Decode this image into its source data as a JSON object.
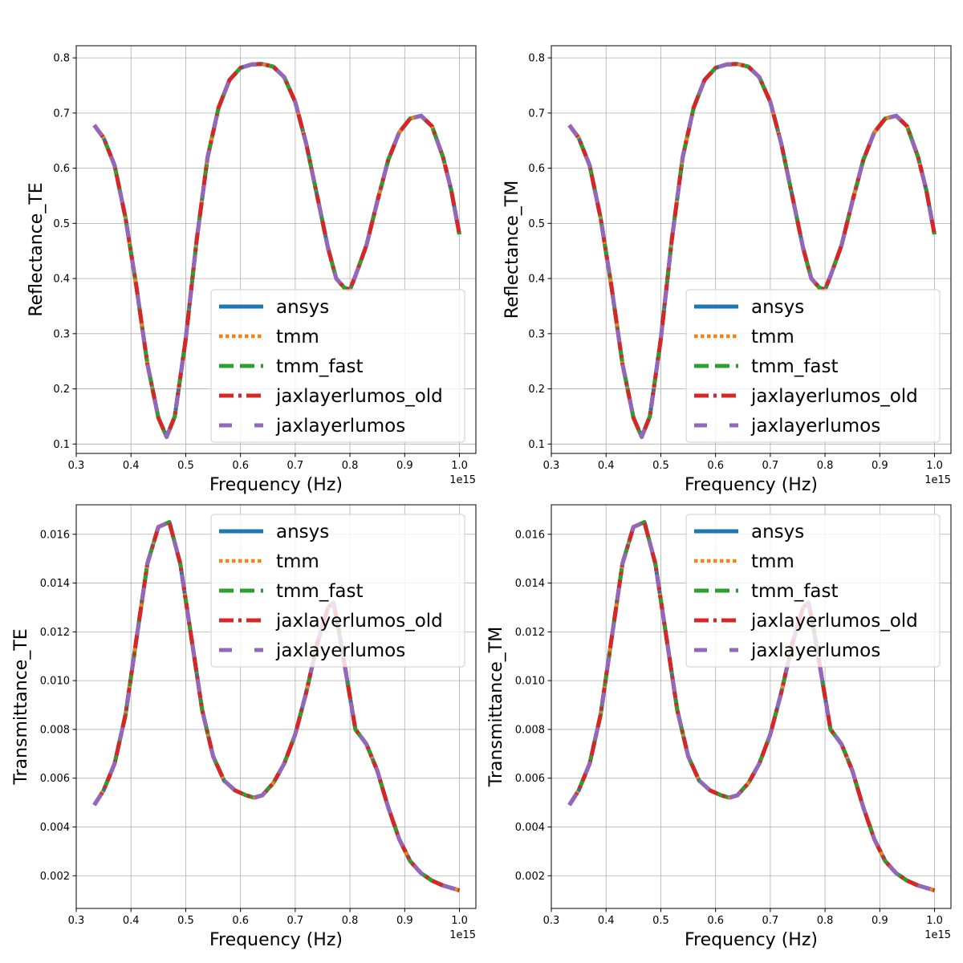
{
  "chart_data": [
    {
      "type": "line",
      "xlabel": "Frequency (Hz)",
      "ylabel": "Reflectance_TE",
      "x_offset_label": "1e15",
      "xlim": [
        0.3,
        1.03
      ],
      "ylim": [
        0.083,
        0.822
      ],
      "xticks": [
        "0.3",
        "0.4",
        "0.5",
        "0.6",
        "0.7",
        "0.8",
        "0.9",
        "1.0"
      ],
      "yticks": [
        "0.1",
        "0.2",
        "0.3",
        "0.4",
        "0.5",
        "0.6",
        "0.7",
        "0.8"
      ],
      "grid": true,
      "legend": "lower right",
      "x": [
        0.333,
        0.35,
        0.37,
        0.39,
        0.41,
        0.43,
        0.45,
        0.465,
        0.48,
        0.5,
        0.52,
        0.54,
        0.56,
        0.58,
        0.6,
        0.62,
        0.64,
        0.66,
        0.68,
        0.7,
        0.72,
        0.74,
        0.76,
        0.775,
        0.79,
        0.8,
        0.81,
        0.83,
        0.85,
        0.87,
        0.89,
        0.91,
        0.93,
        0.95,
        0.97,
        0.985,
        1.0
      ],
      "y": [
        0.678,
        0.655,
        0.605,
        0.51,
        0.385,
        0.245,
        0.148,
        0.113,
        0.15,
        0.29,
        0.47,
        0.62,
        0.71,
        0.76,
        0.782,
        0.788,
        0.789,
        0.784,
        0.765,
        0.72,
        0.645,
        0.55,
        0.455,
        0.4,
        0.383,
        0.38,
        0.405,
        0.46,
        0.54,
        0.615,
        0.665,
        0.69,
        0.695,
        0.676,
        0.62,
        0.56,
        0.48
      ],
      "series": [
        {
          "name": "ansys",
          "color": "#1f77b4",
          "style": "solid"
        },
        {
          "name": "tmm",
          "color": "#ff7f0e",
          "style": "dotted"
        },
        {
          "name": "tmm_fast",
          "color": "#2ca02c",
          "style": "dashed"
        },
        {
          "name": "jaxlayerlumos_old",
          "color": "#d62728",
          "style": "dashdot"
        },
        {
          "name": "jaxlayerlumos",
          "color": "#9467bd",
          "style": "loosedash"
        }
      ]
    },
    {
      "type": "line",
      "xlabel": "Frequency (Hz)",
      "ylabel": "Reflectance_TM",
      "x_offset_label": "1e15",
      "xlim": [
        0.3,
        1.03
      ],
      "ylim": [
        0.083,
        0.822
      ],
      "xticks": [
        "0.3",
        "0.4",
        "0.5",
        "0.6",
        "0.7",
        "0.8",
        "0.9",
        "1.0"
      ],
      "yticks": [
        "0.1",
        "0.2",
        "0.3",
        "0.4",
        "0.5",
        "0.6",
        "0.7",
        "0.8"
      ],
      "grid": true,
      "legend": "lower right",
      "x": [
        0.333,
        0.35,
        0.37,
        0.39,
        0.41,
        0.43,
        0.45,
        0.465,
        0.48,
        0.5,
        0.52,
        0.54,
        0.56,
        0.58,
        0.6,
        0.62,
        0.64,
        0.66,
        0.68,
        0.7,
        0.72,
        0.74,
        0.76,
        0.775,
        0.79,
        0.8,
        0.81,
        0.83,
        0.85,
        0.87,
        0.89,
        0.91,
        0.93,
        0.95,
        0.97,
        0.985,
        1.0
      ],
      "y": [
        0.678,
        0.655,
        0.605,
        0.51,
        0.385,
        0.245,
        0.148,
        0.113,
        0.15,
        0.29,
        0.47,
        0.62,
        0.71,
        0.76,
        0.782,
        0.788,
        0.789,
        0.784,
        0.765,
        0.72,
        0.645,
        0.55,
        0.455,
        0.4,
        0.383,
        0.38,
        0.405,
        0.46,
        0.54,
        0.615,
        0.665,
        0.69,
        0.695,
        0.676,
        0.62,
        0.56,
        0.48
      ],
      "series": [
        {
          "name": "ansys",
          "color": "#1f77b4",
          "style": "solid"
        },
        {
          "name": "tmm",
          "color": "#ff7f0e",
          "style": "dotted"
        },
        {
          "name": "tmm_fast",
          "color": "#2ca02c",
          "style": "dashed"
        },
        {
          "name": "jaxlayerlumos_old",
          "color": "#d62728",
          "style": "dashdot"
        },
        {
          "name": "jaxlayerlumos",
          "color": "#9467bd",
          "style": "loosedash"
        }
      ]
    },
    {
      "type": "line",
      "xlabel": "Frequency (Hz)",
      "ylabel": "Transmittance_TE",
      "x_offset_label": "1e15",
      "xlim": [
        0.3,
        1.03
      ],
      "ylim": [
        0.00066,
        0.01721
      ],
      "xticks": [
        "0.3",
        "0.4",
        "0.5",
        "0.6",
        "0.7",
        "0.8",
        "0.9",
        "1.0"
      ],
      "yticks": [
        "0.002",
        "0.004",
        "0.006",
        "0.008",
        "0.010",
        "0.012",
        "0.014",
        "0.016"
      ],
      "grid": true,
      "legend": "upper right",
      "x": [
        0.333,
        0.35,
        0.37,
        0.39,
        0.41,
        0.43,
        0.45,
        0.47,
        0.49,
        0.51,
        0.53,
        0.55,
        0.57,
        0.59,
        0.61,
        0.625,
        0.64,
        0.66,
        0.68,
        0.7,
        0.72,
        0.74,
        0.76,
        0.77,
        0.78,
        0.795,
        0.81,
        0.83,
        0.85,
        0.87,
        0.89,
        0.91,
        0.93,
        0.95,
        0.97,
        1.0
      ],
      "y": [
        0.0049,
        0.0055,
        0.0066,
        0.0086,
        0.0117,
        0.0148,
        0.0163,
        0.0165,
        0.0148,
        0.0118,
        0.0088,
        0.0069,
        0.0059,
        0.0055,
        0.0053,
        0.0052,
        0.0053,
        0.0058,
        0.0066,
        0.0078,
        0.0095,
        0.0115,
        0.013,
        0.0132,
        0.012,
        0.01,
        0.008,
        0.0074,
        0.0063,
        0.0048,
        0.0035,
        0.0026,
        0.0021,
        0.0018,
        0.0016,
        0.0014
      ],
      "series": [
        {
          "name": "ansys",
          "color": "#1f77b4",
          "style": "solid"
        },
        {
          "name": "tmm",
          "color": "#ff7f0e",
          "style": "dotted"
        },
        {
          "name": "tmm_fast",
          "color": "#2ca02c",
          "style": "dashed"
        },
        {
          "name": "jaxlayerlumos_old",
          "color": "#d62728",
          "style": "dashdot"
        },
        {
          "name": "jaxlayerlumos",
          "color": "#9467bd",
          "style": "loosedash"
        }
      ]
    },
    {
      "type": "line",
      "xlabel": "Frequency (Hz)",
      "ylabel": "Transmittance_TM",
      "x_offset_label": "1e15",
      "xlim": [
        0.3,
        1.03
      ],
      "ylim": [
        0.00066,
        0.01721
      ],
      "xticks": [
        "0.3",
        "0.4",
        "0.5",
        "0.6",
        "0.7",
        "0.8",
        "0.9",
        "1.0"
      ],
      "yticks": [
        "0.002",
        "0.004",
        "0.006",
        "0.008",
        "0.010",
        "0.012",
        "0.014",
        "0.016"
      ],
      "grid": true,
      "legend": "upper right",
      "x": [
        0.333,
        0.35,
        0.37,
        0.39,
        0.41,
        0.43,
        0.45,
        0.47,
        0.49,
        0.51,
        0.53,
        0.55,
        0.57,
        0.59,
        0.61,
        0.625,
        0.64,
        0.66,
        0.68,
        0.7,
        0.72,
        0.74,
        0.76,
        0.77,
        0.78,
        0.795,
        0.81,
        0.83,
        0.85,
        0.87,
        0.89,
        0.91,
        0.93,
        0.95,
        0.97,
        1.0
      ],
      "y": [
        0.0049,
        0.0055,
        0.0066,
        0.0086,
        0.0117,
        0.0148,
        0.0163,
        0.0165,
        0.0148,
        0.0118,
        0.0088,
        0.0069,
        0.0059,
        0.0055,
        0.0053,
        0.0052,
        0.0053,
        0.0058,
        0.0066,
        0.0078,
        0.0095,
        0.0115,
        0.013,
        0.0132,
        0.012,
        0.01,
        0.008,
        0.0074,
        0.0063,
        0.0048,
        0.0035,
        0.0026,
        0.0021,
        0.0018,
        0.0016,
        0.0014
      ],
      "series": [
        {
          "name": "ansys",
          "color": "#1f77b4",
          "style": "solid"
        },
        {
          "name": "tmm",
          "color": "#ff7f0e",
          "style": "dotted"
        },
        {
          "name": "tmm_fast",
          "color": "#2ca02c",
          "style": "dashed"
        },
        {
          "name": "jaxlayerlumos_old",
          "color": "#d62728",
          "style": "dashdot"
        },
        {
          "name": "jaxlayerlumos",
          "color": "#9467bd",
          "style": "loosedash"
        }
      ]
    }
  ]
}
